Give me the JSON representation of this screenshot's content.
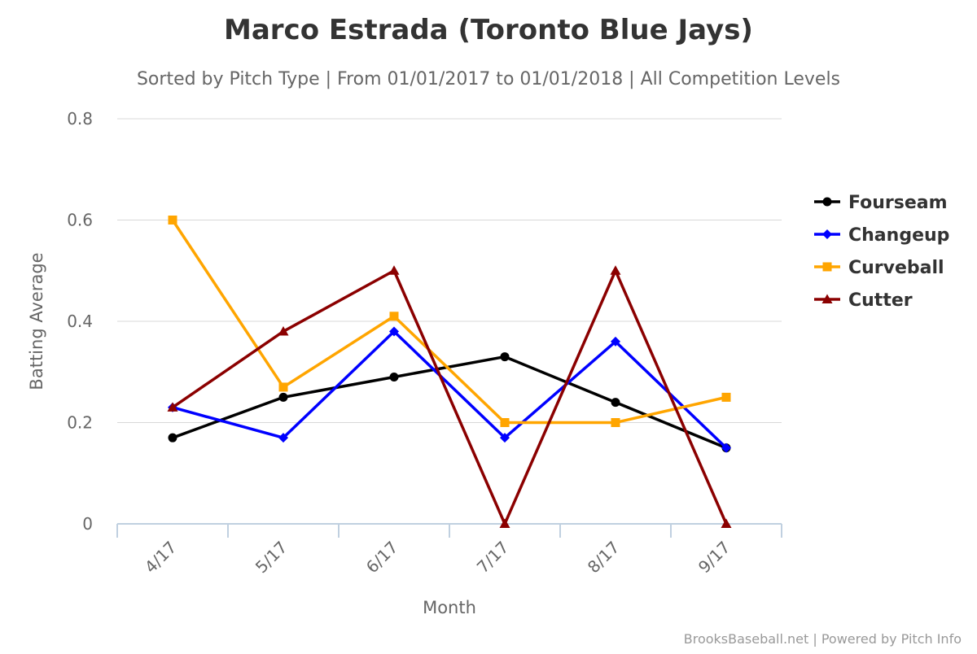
{
  "chart_data": {
    "type": "line",
    "title": "Marco Estrada (Toronto Blue Jays)",
    "subtitle": "Sorted by Pitch Type | From 01/01/2017 to 01/01/2018 | All Competition Levels",
    "xlabel": "Month",
    "ylabel": "Batting Average",
    "categories": [
      "4/17",
      "5/17",
      "6/17",
      "7/17",
      "8/17",
      "9/17"
    ],
    "ylim": [
      0,
      0.8
    ],
    "yticks": [
      0,
      0.2,
      0.4,
      0.6,
      0.8
    ],
    "ytick_labels": [
      "0",
      "0.2",
      "0.4",
      "0.6",
      "0.8"
    ],
    "grid": true,
    "legend_position": "right",
    "series": [
      {
        "name": "Fourseam",
        "color": "#000000",
        "marker": "circle",
        "values": [
          0.17,
          0.25,
          0.29,
          0.33,
          0.24,
          0.15
        ]
      },
      {
        "name": "Changeup",
        "color": "#0000ff",
        "marker": "diamond",
        "values": [
          0.23,
          0.17,
          0.38,
          0.17,
          0.36,
          0.15
        ]
      },
      {
        "name": "Curveball",
        "color": "#ffa500",
        "marker": "square",
        "values": [
          0.6,
          0.27,
          0.41,
          0.2,
          0.2,
          0.25
        ]
      },
      {
        "name": "Cutter",
        "color": "#8b0000",
        "marker": "triangle",
        "values": [
          0.23,
          0.38,
          0.5,
          0.0,
          0.5,
          0.0
        ]
      }
    ],
    "credit": "BrooksBaseball.net | Powered by Pitch Info"
  }
}
